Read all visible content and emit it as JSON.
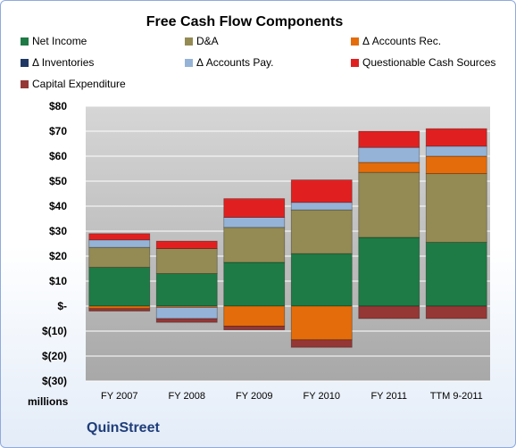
{
  "chart_data": {
    "type": "bar",
    "stacked": true,
    "title": "Free Cash Flow Components",
    "unit_label": "millions",
    "company": "QuinStreet",
    "categories": [
      "FY 2007",
      "FY 2008",
      "FY 2009",
      "FY 2010",
      "FY 2011",
      "TTM 9-2011"
    ],
    "ylim": [
      -30,
      80
    ],
    "yticks": [
      -30,
      -20,
      -10,
      0,
      10,
      20,
      30,
      40,
      50,
      60,
      70,
      80
    ],
    "ytick_labels": [
      "$(30)",
      "$(20)",
      "$(10)",
      "$-",
      "$10",
      "$20",
      "$30",
      "$40",
      "$50",
      "$60",
      "$70",
      "$80"
    ],
    "grid": true,
    "legend_position": "top",
    "series": [
      {
        "name": "Net Income",
        "color": "#1e7b45",
        "values": [
          15.5,
          13,
          17.5,
          21,
          27.5,
          25.5
        ]
      },
      {
        "name": "D&A",
        "color": "#948a54",
        "values": [
          8,
          10,
          14,
          17.5,
          26,
          27.5
        ]
      },
      {
        "name": "Δ Accounts Rec.",
        "color": "#e46c0a",
        "values": [
          -1,
          -0.5,
          -8,
          -13.5,
          4,
          7
        ]
      },
      {
        "name": "Δ Inventories",
        "color": "#1f3864",
        "values": [
          0,
          0,
          0,
          0,
          0,
          0
        ]
      },
      {
        "name": "Δ Accounts Pay.",
        "color": "#95b3d7",
        "values": [
          3,
          -4.5,
          4,
          3,
          6,
          4
        ]
      },
      {
        "name": "Questionable Cash Sources",
        "color": "#e02020",
        "values": [
          2.5,
          3,
          7.5,
          9,
          6.5,
          7
        ]
      },
      {
        "name": "Capital Expenditure",
        "color": "#953735",
        "values": [
          -1,
          -1.5,
          -1.5,
          -3,
          -5,
          -5
        ]
      }
    ]
  }
}
